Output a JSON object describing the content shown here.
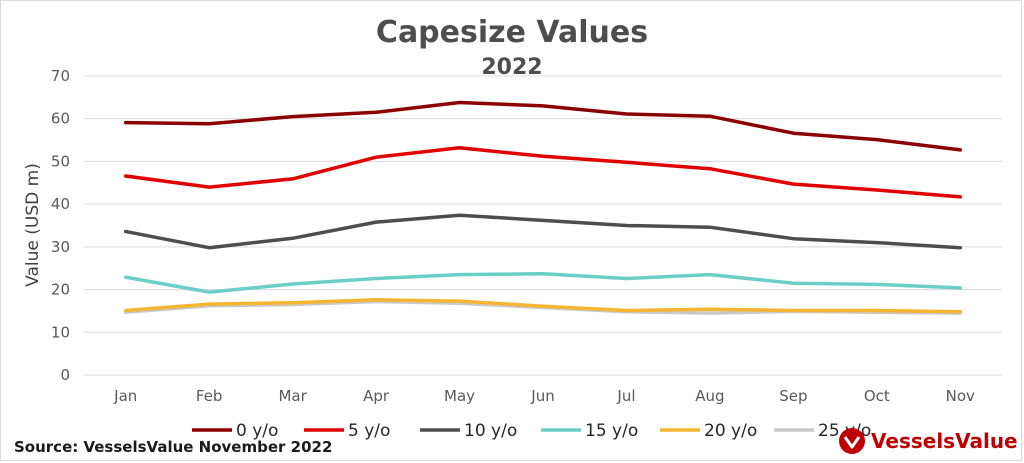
{
  "chart_data": {
    "type": "line",
    "title": "Capesize Values",
    "subtitle": "2022",
    "ylabel": "Value (USD m)",
    "xlabel": "",
    "categories": [
      "Jan",
      "Feb",
      "Mar",
      "Apr",
      "May",
      "Jun",
      "Jul",
      "Aug",
      "Sep",
      "Oct",
      "Nov"
    ],
    "ylim": [
      0,
      70
    ],
    "yticks": [
      0,
      10,
      20,
      30,
      40,
      50,
      60,
      70
    ],
    "grid": true,
    "legend_position": "bottom",
    "series": [
      {
        "name": "0 y/o",
        "color": "#8b0000",
        "values": [
          59.1,
          58.8,
          60.5,
          61.5,
          63.8,
          63.0,
          61.1,
          60.6,
          56.6,
          55.1,
          52.7
        ]
      },
      {
        "name": "5 y/o",
        "color": "#e00000",
        "values": [
          46.6,
          44.0,
          45.9,
          51.0,
          53.2,
          51.2,
          49.8,
          48.3,
          44.7,
          43.3,
          41.7
        ]
      },
      {
        "name": "10 y/o",
        "color": "#4d4d4d",
        "values": [
          33.6,
          29.8,
          32.0,
          35.8,
          37.4,
          36.2,
          35.0,
          34.6,
          31.9,
          31.0,
          29.8
        ]
      },
      {
        "name": "15 y/o",
        "color": "#6ccfc7",
        "values": [
          22.9,
          19.4,
          21.3,
          22.6,
          23.5,
          23.7,
          22.6,
          23.5,
          21.5,
          21.2,
          20.4
        ]
      },
      {
        "name": "20 y/o",
        "color": "#f5b530",
        "values": [
          15.1,
          16.6,
          16.9,
          17.6,
          17.3,
          16.1,
          15.1,
          15.4,
          15.1,
          15.1,
          14.8
        ]
      },
      {
        "name": "25 y/o",
        "color": "#c9c9c9",
        "values": [
          14.7,
          16.2,
          16.5,
          17.2,
          16.8,
          15.8,
          14.8,
          14.5,
          14.9,
          14.7,
          14.5
        ]
      }
    ]
  },
  "footer": {
    "source": "Source: VesselsValue November 2022",
    "brand": "VesselsValue",
    "brand_color": "#c00000"
  }
}
